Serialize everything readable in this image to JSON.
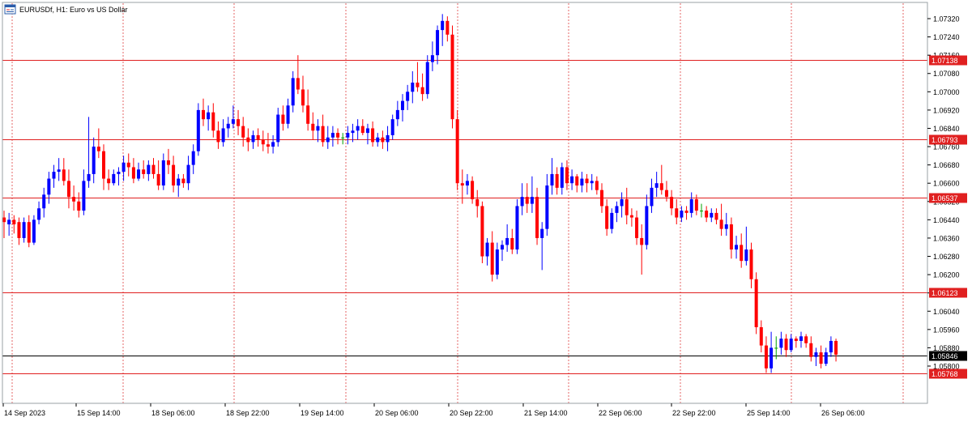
{
  "header": {
    "title": "EURUSDf, H1:  Euro vs US Dollar",
    "icon": "chart-window-icon"
  },
  "colors": {
    "up": "#0000ff",
    "down": "#ff0000",
    "doji": "#00a000",
    "level": "#e02020",
    "bid": "#000000",
    "grid": "#e04040",
    "frame": "#9aa0a6",
    "text": "#000000"
  },
  "chart_data": {
    "type": "candlestick",
    "symbol": "EURUSDf",
    "timeframe": "H1",
    "ylim": [
      1.0573,
      1.0738
    ],
    "y_ticks": [
      "1.07320",
      "1.07240",
      "1.07160",
      "1.07080",
      "1.07000",
      "1.06920",
      "1.06840",
      "1.06760",
      "1.06680",
      "1.06600",
      "1.06520",
      "1.06440",
      "1.06360",
      "1.06280",
      "1.06200",
      "1.06120",
      "1.06040",
      "1.05960",
      "1.05880",
      "1.05800"
    ],
    "x_ticks": [
      "14 Sep 2023",
      "15 Sep 14:00",
      "18 Sep 06:00",
      "18 Sep 22:00",
      "19 Sep 14:00",
      "20 Sep 06:00",
      "20 Sep 22:00",
      "21 Sep 14:00",
      "22 Sep 06:00",
      "22 Sep 22:00",
      "25 Sep 14:00",
      "26 Sep 06:00"
    ],
    "horizontal_levels": [
      {
        "label": "1.07138",
        "value": 1.07138
      },
      {
        "label": "1.06793",
        "value": 1.06793
      },
      {
        "label": "1.06537",
        "value": 1.06537
      },
      {
        "label": "1.06123",
        "value": 1.06123
      },
      {
        "label": "1.05768",
        "value": 1.05768
      }
    ],
    "bid": {
      "label": "1.05846",
      "value": 1.05846
    },
    "grid": true,
    "candles": [
      {
        "o": 1.0645,
        "h": 1.0648,
        "l": 1.0636,
        "c": 1.0643
      },
      {
        "o": 1.0642,
        "h": 1.0647,
        "l": 1.0637,
        "c": 1.0644
      },
      {
        "o": 1.0644,
        "h": 1.0646,
        "l": 1.0638,
        "c": 1.0642
      },
      {
        "o": 1.0643,
        "h": 1.0645,
        "l": 1.0633,
        "c": 1.0636
      },
      {
        "o": 1.0636,
        "h": 1.0645,
        "l": 1.0634,
        "c": 1.0643
      },
      {
        "o": 1.0643,
        "h": 1.0646,
        "l": 1.0632,
        "c": 1.0634
      },
      {
        "o": 1.0634,
        "h": 1.0646,
        "l": 1.0633,
        "c": 1.0644
      },
      {
        "o": 1.0644,
        "h": 1.0652,
        "l": 1.0642,
        "c": 1.0649
      },
      {
        "o": 1.0649,
        "h": 1.0658,
        "l": 1.0645,
        "c": 1.0655
      },
      {
        "o": 1.0655,
        "h": 1.0665,
        "l": 1.0651,
        "c": 1.0662
      },
      {
        "o": 1.0662,
        "h": 1.0668,
        "l": 1.0658,
        "c": 1.0665
      },
      {
        "o": 1.0665,
        "h": 1.0671,
        "l": 1.0661,
        "c": 1.0666
      },
      {
        "o": 1.0666,
        "h": 1.0671,
        "l": 1.0659,
        "c": 1.0661
      },
      {
        "o": 1.0661,
        "h": 1.0666,
        "l": 1.0649,
        "c": 1.0654
      },
      {
        "o": 1.0654,
        "h": 1.0659,
        "l": 1.0648,
        "c": 1.0652
      },
      {
        "o": 1.0652,
        "h": 1.0656,
        "l": 1.0645,
        "c": 1.0648
      },
      {
        "o": 1.0648,
        "h": 1.0666,
        "l": 1.0646,
        "c": 1.0661
      },
      {
        "o": 1.0661,
        "h": 1.0689,
        "l": 1.0658,
        "c": 1.0664
      },
      {
        "o": 1.0664,
        "h": 1.068,
        "l": 1.066,
        "c": 1.0676
      },
      {
        "o": 1.0676,
        "h": 1.0684,
        "l": 1.0671,
        "c": 1.0674
      },
      {
        "o": 1.0674,
        "h": 1.0677,
        "l": 1.0657,
        "c": 1.0662
      },
      {
        "o": 1.0662,
        "h": 1.0666,
        "l": 1.0657,
        "c": 1.066
      },
      {
        "o": 1.066,
        "h": 1.0666,
        "l": 1.0659,
        "c": 1.0664
      },
      {
        "o": 1.0664,
        "h": 1.0667,
        "l": 1.0659,
        "c": 1.0665
      },
      {
        "o": 1.0665,
        "h": 1.0672,
        "l": 1.0661,
        "c": 1.0669
      },
      {
        "o": 1.0669,
        "h": 1.0673,
        "l": 1.0663,
        "c": 1.0667
      },
      {
        "o": 1.0667,
        "h": 1.0671,
        "l": 1.066,
        "c": 1.0662
      },
      {
        "o": 1.0662,
        "h": 1.0669,
        "l": 1.0661,
        "c": 1.0666
      },
      {
        "o": 1.0666,
        "h": 1.067,
        "l": 1.0662,
        "c": 1.0664
      },
      {
        "o": 1.0664,
        "h": 1.067,
        "l": 1.0661,
        "c": 1.0668
      },
      {
        "o": 1.0668,
        "h": 1.0671,
        "l": 1.0662,
        "c": 1.0664
      },
      {
        "o": 1.0664,
        "h": 1.067,
        "l": 1.0657,
        "c": 1.0659
      },
      {
        "o": 1.0659,
        "h": 1.0673,
        "l": 1.0657,
        "c": 1.067
      },
      {
        "o": 1.067,
        "h": 1.0675,
        "l": 1.0664,
        "c": 1.0668
      },
      {
        "o": 1.0668,
        "h": 1.0672,
        "l": 1.0656,
        "c": 1.0659
      },
      {
        "o": 1.0659,
        "h": 1.0664,
        "l": 1.0654,
        "c": 1.0662
      },
      {
        "o": 1.0662,
        "h": 1.0664,
        "l": 1.0658,
        "c": 1.066
      },
      {
        "o": 1.066,
        "h": 1.0672,
        "l": 1.0657,
        "c": 1.0668
      },
      {
        "o": 1.0668,
        "h": 1.0677,
        "l": 1.0664,
        "c": 1.0674
      },
      {
        "o": 1.0674,
        "h": 1.0695,
        "l": 1.0672,
        "c": 1.0692
      },
      {
        "o": 1.0692,
        "h": 1.0697,
        "l": 1.0685,
        "c": 1.0688
      },
      {
        "o": 1.0688,
        "h": 1.0694,
        "l": 1.0683,
        "c": 1.0691
      },
      {
        "o": 1.0691,
        "h": 1.0695,
        "l": 1.068,
        "c": 1.0683
      },
      {
        "o": 1.0683,
        "h": 1.0687,
        "l": 1.0675,
        "c": 1.0678
      },
      {
        "o": 1.0678,
        "h": 1.0688,
        "l": 1.0676,
        "c": 1.0684
      },
      {
        "o": 1.0684,
        "h": 1.0689,
        "l": 1.068,
        "c": 1.0686
      },
      {
        "o": 1.0686,
        "h": 1.0694,
        "l": 1.0684,
        "c": 1.0688
      },
      {
        "o": 1.0688,
        "h": 1.0692,
        "l": 1.0681,
        "c": 1.0685
      },
      {
        "o": 1.0685,
        "h": 1.0689,
        "l": 1.0676,
        "c": 1.068
      },
      {
        "o": 1.068,
        "h": 1.0684,
        "l": 1.0674,
        "c": 1.0678
      },
      {
        "o": 1.0678,
        "h": 1.0683,
        "l": 1.0675,
        "c": 1.0681
      },
      {
        "o": 1.0681,
        "h": 1.0684,
        "l": 1.0676,
        "c": 1.0679
      },
      {
        "o": 1.0679,
        "h": 1.0683,
        "l": 1.0674,
        "c": 1.0677
      },
      {
        "o": 1.0677,
        "h": 1.0682,
        "l": 1.0673,
        "c": 1.0676
      },
      {
        "o": 1.0676,
        "h": 1.0681,
        "l": 1.0673,
        "c": 1.0678
      },
      {
        "o": 1.0678,
        "h": 1.0693,
        "l": 1.0676,
        "c": 1.069
      },
      {
        "o": 1.069,
        "h": 1.0694,
        "l": 1.0683,
        "c": 1.0686
      },
      {
        "o": 1.0686,
        "h": 1.0697,
        "l": 1.0684,
        "c": 1.0694
      },
      {
        "o": 1.0694,
        "h": 1.0709,
        "l": 1.0691,
        "c": 1.0706
      },
      {
        "o": 1.0706,
        "h": 1.0716,
        "l": 1.0699,
        "c": 1.0701
      },
      {
        "o": 1.0701,
        "h": 1.0707,
        "l": 1.0691,
        "c": 1.0694
      },
      {
        "o": 1.0694,
        "h": 1.0701,
        "l": 1.0683,
        "c": 1.0686
      },
      {
        "o": 1.0686,
        "h": 1.0691,
        "l": 1.0679,
        "c": 1.0683
      },
      {
        "o": 1.0683,
        "h": 1.0688,
        "l": 1.0678,
        "c": 1.0685
      },
      {
        "o": 1.0685,
        "h": 1.069,
        "l": 1.0676,
        "c": 1.0678
      },
      {
        "o": 1.0678,
        "h": 1.0685,
        "l": 1.0675,
        "c": 1.068
      },
      {
        "o": 1.068,
        "h": 1.0685,
        "l": 1.0676,
        "c": 1.0682
      },
      {
        "o": 1.0682,
        "h": 1.0684,
        "l": 1.0677,
        "c": 1.068
      },
      {
        "o": 1.068,
        "h": 1.0682,
        "l": 1.0677,
        "c": 1.068
      },
      {
        "o": 1.068,
        "h": 1.0685,
        "l": 1.0677,
        "c": 1.0682
      },
      {
        "o": 1.0682,
        "h": 1.0686,
        "l": 1.0678,
        "c": 1.0683
      },
      {
        "o": 1.0683,
        "h": 1.0688,
        "l": 1.0679,
        "c": 1.0685
      },
      {
        "o": 1.0685,
        "h": 1.0688,
        "l": 1.0681,
        "c": 1.0682
      },
      {
        "o": 1.0682,
        "h": 1.0686,
        "l": 1.0677,
        "c": 1.0684
      },
      {
        "o": 1.0684,
        "h": 1.0687,
        "l": 1.0676,
        "c": 1.0678
      },
      {
        "o": 1.0678,
        "h": 1.0682,
        "l": 1.0676,
        "c": 1.068
      },
      {
        "o": 1.068,
        "h": 1.0683,
        "l": 1.0675,
        "c": 1.0678
      },
      {
        "o": 1.0678,
        "h": 1.0685,
        "l": 1.0674,
        "c": 1.0681
      },
      {
        "o": 1.0681,
        "h": 1.069,
        "l": 1.0679,
        "c": 1.0688
      },
      {
        "o": 1.0688,
        "h": 1.0696,
        "l": 1.0685,
        "c": 1.0692
      },
      {
        "o": 1.0692,
        "h": 1.0699,
        "l": 1.0687,
        "c": 1.0696
      },
      {
        "o": 1.0696,
        "h": 1.0703,
        "l": 1.0692,
        "c": 1.07
      },
      {
        "o": 1.07,
        "h": 1.0709,
        "l": 1.0695,
        "c": 1.0704
      },
      {
        "o": 1.0704,
        "h": 1.0713,
        "l": 1.07,
        "c": 1.0702
      },
      {
        "o": 1.0702,
        "h": 1.0708,
        "l": 1.0696,
        "c": 1.0699
      },
      {
        "o": 1.0699,
        "h": 1.0716,
        "l": 1.0697,
        "c": 1.0713
      },
      {
        "o": 1.0713,
        "h": 1.0722,
        "l": 1.0709,
        "c": 1.0716
      },
      {
        "o": 1.0716,
        "h": 1.0729,
        "l": 1.0712,
        "c": 1.0727
      },
      {
        "o": 1.0727,
        "h": 1.0734,
        "l": 1.072,
        "c": 1.0731
      },
      {
        "o": 1.0731,
        "h": 1.0733,
        "l": 1.0722,
        "c": 1.0725
      },
      {
        "o": 1.0725,
        "h": 1.0729,
        "l": 1.0684,
        "c": 1.0688
      },
      {
        "o": 1.0688,
        "h": 1.0692,
        "l": 1.0657,
        "c": 1.066
      },
      {
        "o": 1.066,
        "h": 1.0666,
        "l": 1.0651,
        "c": 1.0659
      },
      {
        "o": 1.0659,
        "h": 1.0664,
        "l": 1.0655,
        "c": 1.0661
      },
      {
        "o": 1.0661,
        "h": 1.0663,
        "l": 1.0651,
        "c": 1.0653
      },
      {
        "o": 1.0653,
        "h": 1.0657,
        "l": 1.0645,
        "c": 1.065
      },
      {
        "o": 1.065,
        "h": 1.0652,
        "l": 1.0625,
        "c": 1.0628
      },
      {
        "o": 1.0628,
        "h": 1.0636,
        "l": 1.0624,
        "c": 1.0634
      },
      {
        "o": 1.0634,
        "h": 1.0639,
        "l": 1.0617,
        "c": 1.062
      },
      {
        "o": 1.062,
        "h": 1.0634,
        "l": 1.0618,
        "c": 1.0631
      },
      {
        "o": 1.0631,
        "h": 1.0635,
        "l": 1.0626,
        "c": 1.0633
      },
      {
        "o": 1.0633,
        "h": 1.0642,
        "l": 1.063,
        "c": 1.0636
      },
      {
        "o": 1.0636,
        "h": 1.064,
        "l": 1.0629,
        "c": 1.0631
      },
      {
        "o": 1.0631,
        "h": 1.0653,
        "l": 1.0629,
        "c": 1.065
      },
      {
        "o": 1.065,
        "h": 1.066,
        "l": 1.0646,
        "c": 1.0654
      },
      {
        "o": 1.0654,
        "h": 1.066,
        "l": 1.0647,
        "c": 1.0651
      },
      {
        "o": 1.0651,
        "h": 1.0663,
        "l": 1.0647,
        "c": 1.0654
      },
      {
        "o": 1.0654,
        "h": 1.0658,
        "l": 1.0633,
        "c": 1.0636
      },
      {
        "o": 1.0636,
        "h": 1.0643,
        "l": 1.0622,
        "c": 1.064
      },
      {
        "o": 1.064,
        "h": 1.0664,
        "l": 1.0637,
        "c": 1.0659
      },
      {
        "o": 1.0659,
        "h": 1.0671,
        "l": 1.0655,
        "c": 1.0664
      },
      {
        "o": 1.0664,
        "h": 1.0667,
        "l": 1.0655,
        "c": 1.0658
      },
      {
        "o": 1.0658,
        "h": 1.0669,
        "l": 1.0655,
        "c": 1.0667
      },
      {
        "o": 1.0667,
        "h": 1.067,
        "l": 1.0657,
        "c": 1.066
      },
      {
        "o": 1.066,
        "h": 1.0666,
        "l": 1.0657,
        "c": 1.0663
      },
      {
        "o": 1.0663,
        "h": 1.0664,
        "l": 1.0656,
        "c": 1.0659
      },
      {
        "o": 1.0659,
        "h": 1.0665,
        "l": 1.0656,
        "c": 1.0662
      },
      {
        "o": 1.0662,
        "h": 1.0664,
        "l": 1.0656,
        "c": 1.066
      },
      {
        "o": 1.066,
        "h": 1.0664,
        "l": 1.0657,
        "c": 1.0661
      },
      {
        "o": 1.0661,
        "h": 1.0663,
        "l": 1.0655,
        "c": 1.0657
      },
      {
        "o": 1.0657,
        "h": 1.066,
        "l": 1.0647,
        "c": 1.065
      },
      {
        "o": 1.065,
        "h": 1.0653,
        "l": 1.0637,
        "c": 1.064
      },
      {
        "o": 1.064,
        "h": 1.0649,
        "l": 1.0638,
        "c": 1.0647
      },
      {
        "o": 1.0647,
        "h": 1.0652,
        "l": 1.0643,
        "c": 1.065
      },
      {
        "o": 1.065,
        "h": 1.0656,
        "l": 1.0645,
        "c": 1.0653
      },
      {
        "o": 1.0653,
        "h": 1.0658,
        "l": 1.0642,
        "c": 1.0646
      },
      {
        "o": 1.0646,
        "h": 1.0649,
        "l": 1.0641,
        "c": 1.0645
      },
      {
        "o": 1.0645,
        "h": 1.0648,
        "l": 1.0633,
        "c": 1.0636
      },
      {
        "o": 1.0636,
        "h": 1.0642,
        "l": 1.062,
        "c": 1.0633
      },
      {
        "o": 1.0633,
        "h": 1.0655,
        "l": 1.0631,
        "c": 1.065
      },
      {
        "o": 1.065,
        "h": 1.0662,
        "l": 1.0647,
        "c": 1.0658
      },
      {
        "o": 1.0658,
        "h": 1.0665,
        "l": 1.0654,
        "c": 1.066
      },
      {
        "o": 1.066,
        "h": 1.0668,
        "l": 1.0655,
        "c": 1.0657
      },
      {
        "o": 1.0657,
        "h": 1.0661,
        "l": 1.0652,
        "c": 1.0654
      },
      {
        "o": 1.0654,
        "h": 1.0657,
        "l": 1.0646,
        "c": 1.0649
      },
      {
        "o": 1.0649,
        "h": 1.0653,
        "l": 1.0642,
        "c": 1.0645
      },
      {
        "o": 1.0645,
        "h": 1.065,
        "l": 1.0643,
        "c": 1.0648
      },
      {
        "o": 1.0648,
        "h": 1.065,
        "l": 1.0644,
        "c": 1.0647
      },
      {
        "o": 1.0647,
        "h": 1.0656,
        "l": 1.0645,
        "c": 1.0653
      },
      {
        "o": 1.0653,
        "h": 1.0655,
        "l": 1.0646,
        "c": 1.0648
      },
      {
        "o": 1.0648,
        "h": 1.0651,
        "l": 1.0645,
        "c": 1.0648
      },
      {
        "o": 1.0648,
        "h": 1.065,
        "l": 1.0643,
        "c": 1.0645
      },
      {
        "o": 1.0645,
        "h": 1.0649,
        "l": 1.0643,
        "c": 1.0647
      },
      {
        "o": 1.0647,
        "h": 1.0649,
        "l": 1.0642,
        "c": 1.0644
      },
      {
        "o": 1.0644,
        "h": 1.0651,
        "l": 1.0637,
        "c": 1.064
      },
      {
        "o": 1.064,
        "h": 1.0647,
        "l": 1.0637,
        "c": 1.0642
      },
      {
        "o": 1.0642,
        "h": 1.0645,
        "l": 1.0627,
        "c": 1.0631
      },
      {
        "o": 1.0631,
        "h": 1.0637,
        "l": 1.0627,
        "c": 1.0633
      },
      {
        "o": 1.0633,
        "h": 1.0638,
        "l": 1.0623,
        "c": 1.0626
      },
      {
        "o": 1.0626,
        "h": 1.0641,
        "l": 1.0624,
        "c": 1.0631
      },
      {
        "o": 1.0631,
        "h": 1.0634,
        "l": 1.0614,
        "c": 1.0618
      },
      {
        "o": 1.0618,
        "h": 1.0621,
        "l": 1.0594,
        "c": 1.0597
      },
      {
        "o": 1.0597,
        "h": 1.06,
        "l": 1.0586,
        "c": 1.0589
      },
      {
        "o": 1.0589,
        "h": 1.0593,
        "l": 1.0577,
        "c": 1.0579
      },
      {
        "o": 1.0579,
        "h": 1.0595,
        "l": 1.0577,
        "c": 1.0588
      },
      {
        "o": 1.0588,
        "h": 1.0593,
        "l": 1.0583,
        "c": 1.0588
      },
      {
        "o": 1.0588,
        "h": 1.0595,
        "l": 1.0585,
        "c": 1.0592
      },
      {
        "o": 1.0592,
        "h": 1.0594,
        "l": 1.0584,
        "c": 1.0587
      },
      {
        "o": 1.0587,
        "h": 1.0594,
        "l": 1.0586,
        "c": 1.0592
      },
      {
        "o": 1.0592,
        "h": 1.0593,
        "l": 1.0588,
        "c": 1.0591
      },
      {
        "o": 1.0591,
        "h": 1.0595,
        "l": 1.0588,
        "c": 1.0593
      },
      {
        "o": 1.0593,
        "h": 1.0594,
        "l": 1.0588,
        "c": 1.059
      },
      {
        "o": 1.059,
        "h": 1.0593,
        "l": 1.0582,
        "c": 1.0584
      },
      {
        "o": 1.0584,
        "h": 1.0588,
        "l": 1.058,
        "c": 1.0586
      },
      {
        "o": 1.0586,
        "h": 1.0589,
        "l": 1.0579,
        "c": 1.0581
      },
      {
        "o": 1.0581,
        "h": 1.0588,
        "l": 1.058,
        "c": 1.0586
      },
      {
        "o": 1.0586,
        "h": 1.0593,
        "l": 1.0584,
        "c": 1.0591
      },
      {
        "o": 1.0591,
        "h": 1.0592,
        "l": 1.0582,
        "c": 1.0585
      }
    ]
  }
}
